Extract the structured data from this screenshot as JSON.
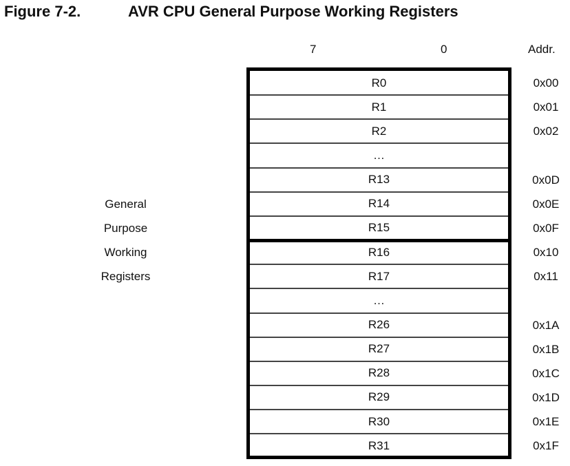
{
  "figure": {
    "number": "Figure 7-2.",
    "title": "AVR CPU General Purpose Working Registers"
  },
  "header": {
    "bit_high": "7",
    "bit_low": "0",
    "addr_label": "Addr."
  },
  "side_label": [
    "General",
    "Purpose",
    "Working",
    "Registers"
  ],
  "registers": [
    {
      "name": "R0",
      "addr": "0x00"
    },
    {
      "name": "R1",
      "addr": "0x01"
    },
    {
      "name": "R2",
      "addr": "0x02"
    },
    {
      "name": "…",
      "addr": ""
    },
    {
      "name": "R13",
      "addr": "0x0D"
    },
    {
      "name": "R14",
      "addr": "0x0E"
    },
    {
      "name": "R15",
      "addr": "0x0F"
    },
    {
      "name": "R16",
      "addr": "0x10"
    },
    {
      "name": "R17",
      "addr": "0x11"
    },
    {
      "name": "…",
      "addr": ""
    },
    {
      "name": "R26",
      "addr": "0x1A"
    },
    {
      "name": "R27",
      "addr": "0x1B"
    },
    {
      "name": "R28",
      "addr": "0x1C"
    },
    {
      "name": "R29",
      "addr": "0x1D"
    },
    {
      "name": "R30",
      "addr": "0x1E"
    },
    {
      "name": "R31",
      "addr": "0x1F"
    }
  ]
}
